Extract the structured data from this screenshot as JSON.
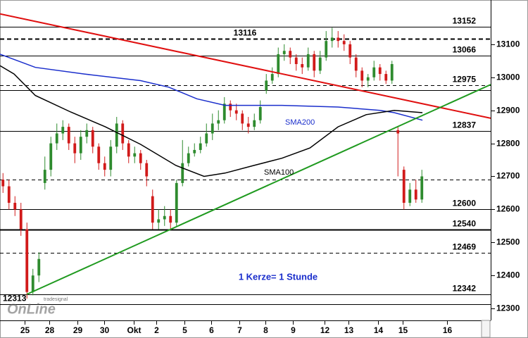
{
  "chart_data": {
    "type": "candlestick",
    "xlim": [
      -0.5,
      81.5
    ],
    "ylim": [
      12264,
      13234
    ],
    "yticks": [
      13100,
      13000,
      12900,
      12800,
      12700,
      12600,
      12500,
      12400,
      12300
    ],
    "xticks": [
      {
        "value": 3.6,
        "label": "25"
      },
      {
        "value": 7.7,
        "label": "28"
      },
      {
        "value": 12.4,
        "label": "29"
      },
      {
        "value": 16.9,
        "label": "30"
      },
      {
        "value": 21.9,
        "label": "Okt"
      },
      {
        "value": 25.6,
        "label": "2"
      },
      {
        "value": 30.3,
        "label": "5"
      },
      {
        "value": 34.8,
        "label": "6"
      },
      {
        "value": 39.5,
        "label": "7"
      },
      {
        "value": 43.9,
        "label": "8"
      },
      {
        "value": 48.4,
        "label": "9"
      },
      {
        "value": 53.7,
        "label": "12"
      },
      {
        "value": 57.7,
        "label": "13"
      },
      {
        "value": 62.7,
        "label": "14"
      },
      {
        "value": 66.8,
        "label": "15"
      },
      {
        "value": 74.2,
        "label": "16"
      }
    ],
    "up_color": "#2e8b2e",
    "down_color": "#d11a1a",
    "open": [
      12690,
      12670,
      12620,
      12600,
      12540,
      12350,
      12400,
      12680,
      12720,
      12800,
      12830,
      12850,
      12800,
      12770,
      12820,
      12840,
      12790,
      12740,
      12720,
      12790,
      12860,
      12800,
      12760,
      12770,
      12740,
      12640,
      12560,
      12570,
      12580,
      12560,
      12680,
      12740,
      12770,
      12780,
      12800,
      12830,
      12860,
      12870,
      12920,
      12900,
      12890,
      12860,
      12850,
      12870,
      12960,
      12990,
      13010,
      13070,
      13080,
      13060,
      13040,
      13030,
      13070,
      13020,
      13060,
      13110,
      13120,
      13110,
      13100,
      13060,
      13020,
      12990,
      13000,
      13030,
      13010,
      12990,
      12840,
      12720,
      12620,
      12660,
      12630
    ],
    "high": [
      12710,
      12690,
      12640,
      12620,
      12560,
      12420,
      12470,
      12760,
      12820,
      12860,
      12870,
      12860,
      12820,
      12840,
      12860,
      12850,
      12800,
      12760,
      12810,
      12880,
      12870,
      12810,
      12790,
      12780,
      12750,
      12660,
      12600,
      12610,
      12600,
      12690,
      12810,
      12790,
      12800,
      12820,
      12860,
      12890,
      12900,
      12940,
      12930,
      12920,
      12900,
      12880,
      12890,
      12930,
      13010,
      13030,
      13090,
      13100,
      13090,
      13070,
      13060,
      13090,
      13080,
      13080,
      13140,
      13150,
      13140,
      13130,
      13110,
      13070,
      13030,
      13010,
      13050,
      13040,
      13020,
      13050,
      12850,
      12730,
      12680,
      12690,
      12720
    ],
    "low": [
      12650,
      12600,
      12580,
      12520,
      12330,
      12340,
      12380,
      12660,
      12700,
      12780,
      12810,
      12780,
      12740,
      12750,
      12800,
      12770,
      12720,
      12700,
      12700,
      12770,
      12780,
      12740,
      12740,
      12720,
      12670,
      12540,
      12540,
      12550,
      12540,
      12550,
      12670,
      12730,
      12760,
      12770,
      12790,
      12810,
      12840,
      12860,
      12880,
      12870,
      12840,
      12830,
      12840,
      12860,
      12950,
      12980,
      13000,
      13050,
      13040,
      13020,
      13010,
      13020,
      13000,
      13010,
      13050,
      13090,
      13090,
      13080,
      13040,
      13000,
      12970,
      12970,
      12990,
      12990,
      12980,
      12980,
      12700,
      12600,
      12610,
      12620,
      12620
    ],
    "close": [
      12670,
      12620,
      12600,
      12540,
      12350,
      12400,
      12450,
      12720,
      12800,
      12830,
      12850,
      12800,
      12770,
      12820,
      12840,
      12790,
      12740,
      12720,
      12790,
      12860,
      12800,
      12760,
      12770,
      12740,
      12700,
      12560,
      12570,
      12580,
      12560,
      12680,
      12740,
      12770,
      12780,
      12800,
      12830,
      12860,
      12870,
      12920,
      12900,
      12890,
      12860,
      12850,
      12870,
      12910,
      12990,
      13010,
      13070,
      13080,
      13060,
      13040,
      13030,
      13070,
      13020,
      13060,
      13110,
      13120,
      13110,
      13100,
      13060,
      13020,
      12990,
      13000,
      13030,
      13010,
      12990,
      13040,
      12830,
      12620,
      12660,
      12630,
      12700
    ],
    "series": [
      {
        "name": "SMA200",
        "color": "#1a2ecc",
        "x": [
          -0.5,
          5.4,
          13.6,
          23,
          27.7,
          32.4,
          37.1,
          46.6,
          56,
          63,
          65.4,
          70.1
        ],
        "values": [
          13070,
          13030,
          13010,
          12990,
          12970,
          12935,
          12915,
          12915,
          12910,
          12900,
          12893,
          12870
        ]
      },
      {
        "name": "SMA100",
        "color": "#000000",
        "x": [
          -0.5,
          1.85,
          5.4,
          11.3,
          17.1,
          23,
          28.9,
          33.6,
          37.1,
          41.9,
          46.6,
          51.3,
          56,
          60.7,
          65.4,
          70.1
        ],
        "values": [
          13035,
          13010,
          12945,
          12895,
          12850,
          12797,
          12733,
          12700,
          12710,
          12733,
          12755,
          12786,
          12850,
          12887,
          12900,
          12893
        ]
      },
      {
        "color": "#e01010",
        "x": [
          -0.5,
          81.5
        ],
        "values": [
          13192,
          12876
        ]
      },
      {
        "color": "#1f9a1f",
        "x": [
          4,
          81.5
        ],
        "values": [
          12343,
          12978
        ]
      }
    ],
    "levels": [
      {
        "value": 13152,
        "label": "13152",
        "style": "solid",
        "side": "right"
      },
      {
        "value": 13116,
        "label": "13116",
        "style": "bold-dashed",
        "side": "center"
      },
      {
        "value": 13066,
        "label": "13066",
        "style": "solid",
        "side": "right"
      },
      {
        "value": 12975,
        "label": "12975",
        "style": "dashed",
        "side": "right"
      },
      {
        "value": 12961,
        "style": "solid"
      },
      {
        "value": 12837,
        "label": "12837",
        "style": "solid",
        "side": "right"
      },
      {
        "value": 12690,
        "style": "dashed"
      },
      {
        "value": 12600,
        "label": "12600",
        "style": "solid",
        "side": "right"
      },
      {
        "value": 12540,
        "label": "12540",
        "style": "bold",
        "side": "right"
      },
      {
        "value": 12469,
        "label": "12469",
        "style": "dashed",
        "side": "right"
      },
      {
        "value": 12342,
        "label": "12342",
        "style": "solid",
        "side": "right"
      },
      {
        "value": 12313,
        "label": "12313",
        "style": "solid",
        "side": "left"
      }
    ],
    "annotations": [
      "1 Kerze= 1 Stunde"
    ],
    "logo": [
      "tradesignal",
      "OnLine"
    ]
  }
}
